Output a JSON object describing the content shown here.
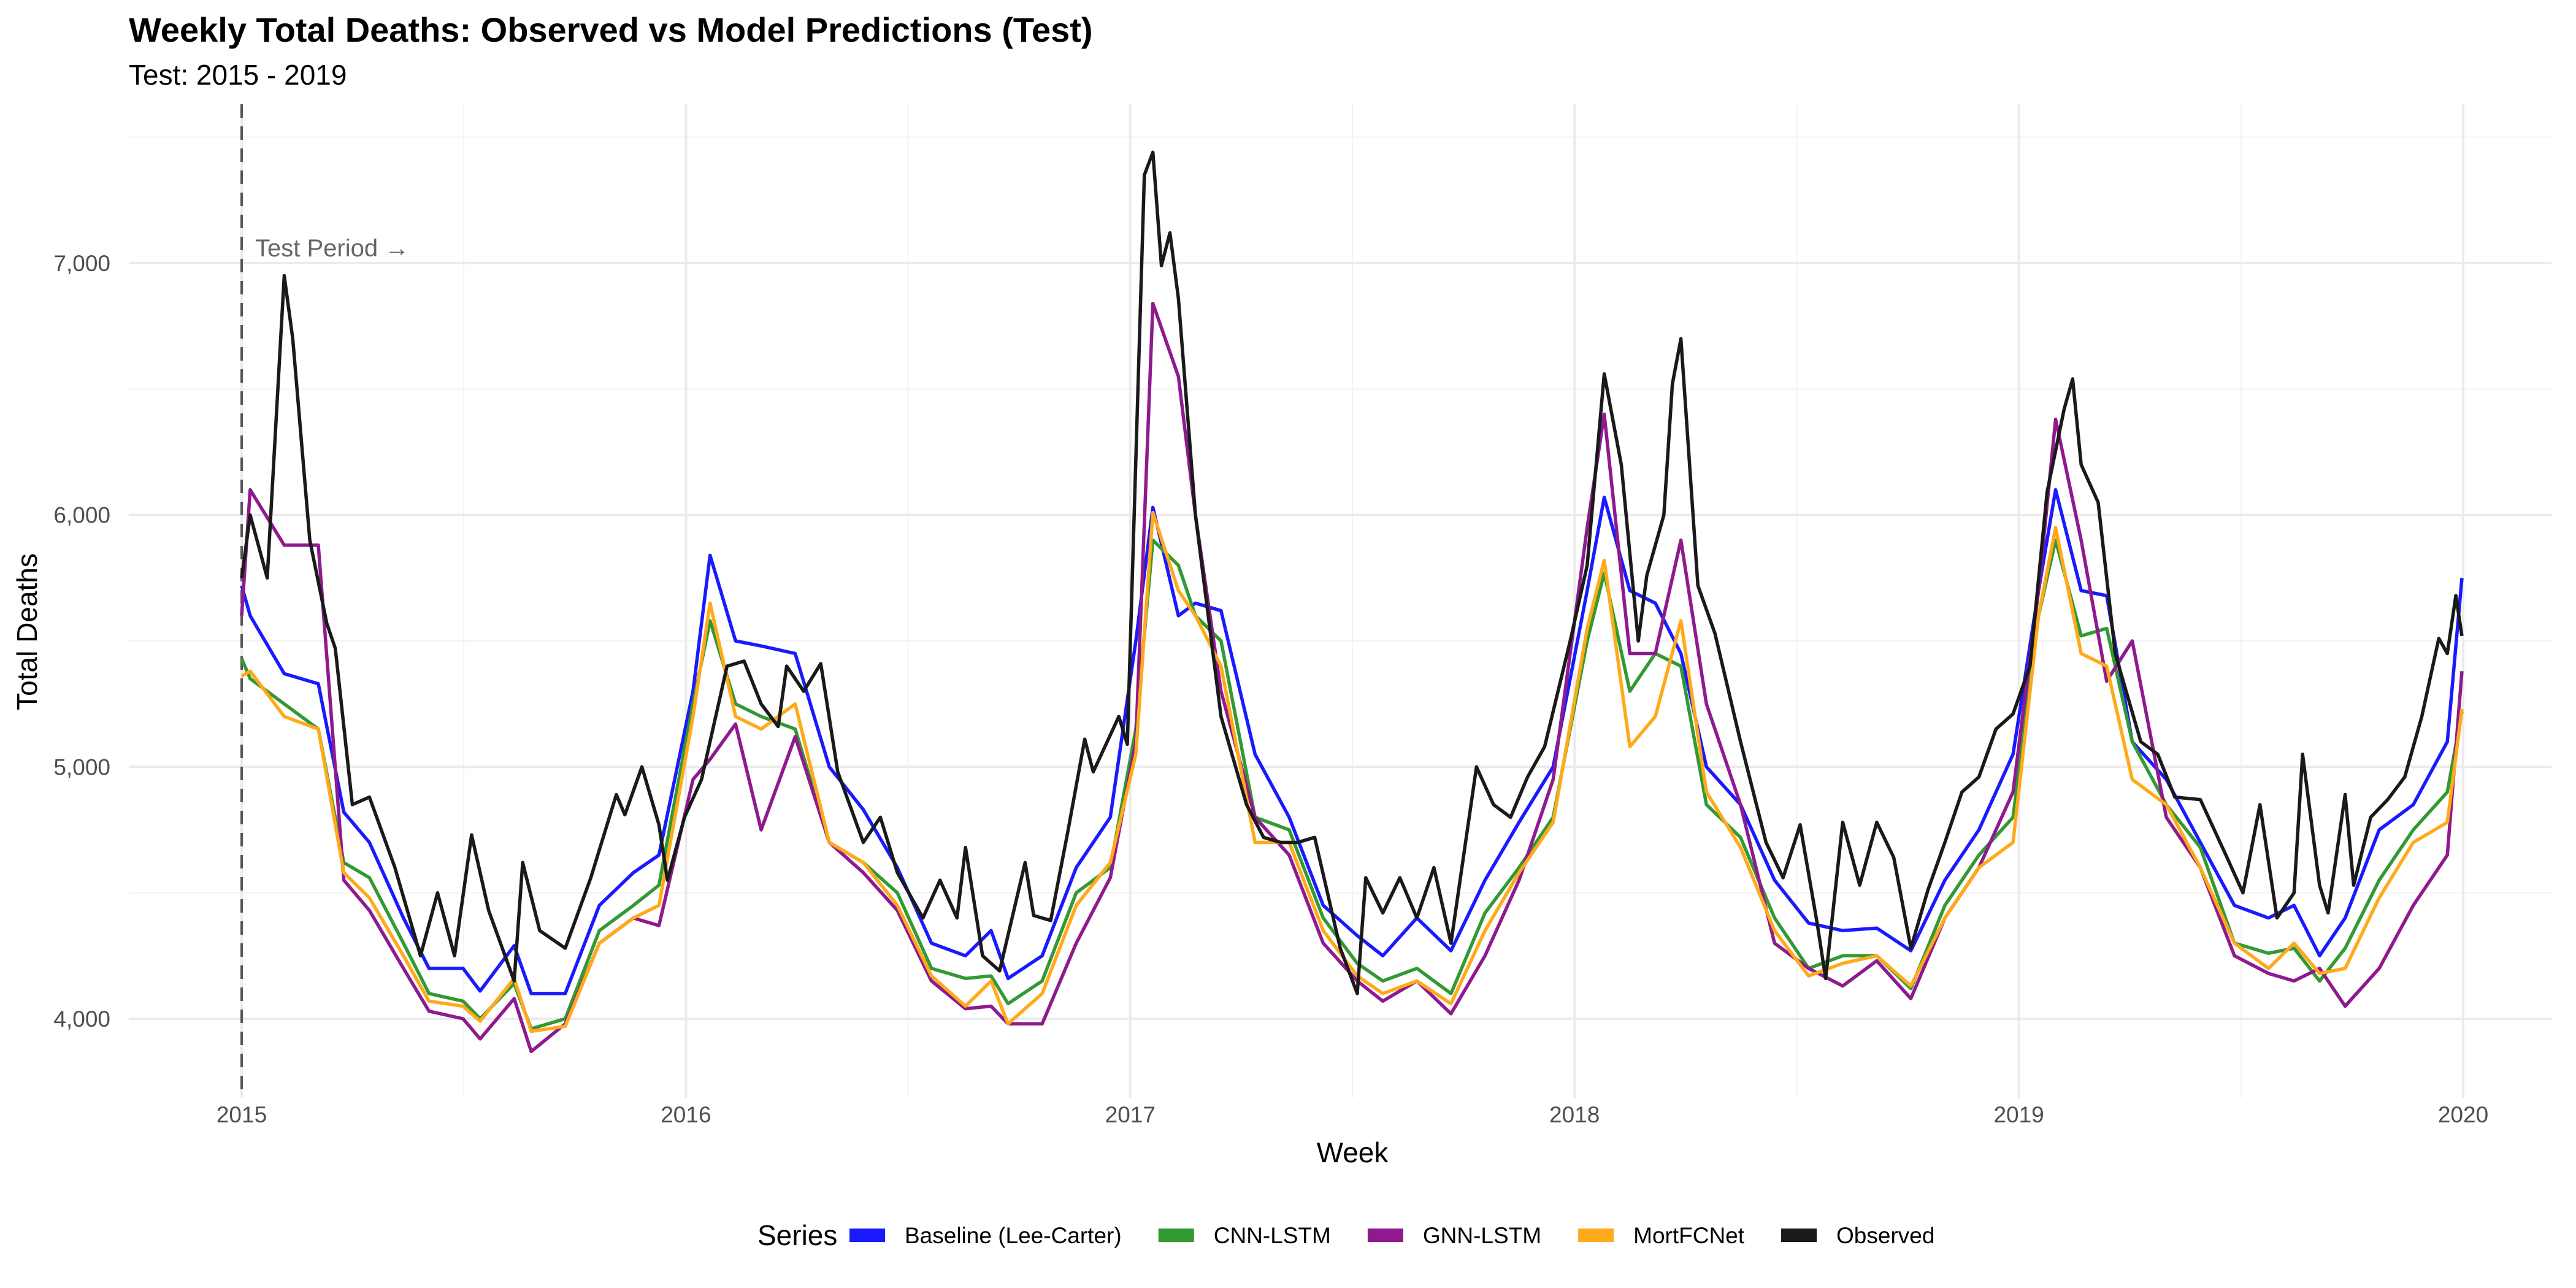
{
  "chart_data": {
    "type": "line",
    "title": "Weekly Total Deaths: Observed vs Model Predictions (Test)",
    "subtitle": "Test: 2015 - 2019",
    "xlabel": "Week",
    "ylabel": "Total Deaths",
    "xlim": [
      "2014-09-15",
      "2020-05-15"
    ],
    "ylim": [
      3700,
      7600
    ],
    "x_ticks": [
      "2015",
      "2016",
      "2017",
      "2018",
      "2019",
      "2020"
    ],
    "y_ticks": [
      4000,
      5000,
      6000,
      7000
    ],
    "y_tick_labels": [
      "4,000",
      "5,000",
      "6,000",
      "7,000"
    ],
    "grid": true,
    "legend": {
      "title": "Series",
      "position": "bottom"
    },
    "annotation": {
      "text": "Test Period →",
      "vline_date": "2015-01-01",
      "style": "dashed"
    },
    "series": [
      {
        "name": "Baseline (Lee-Carter)",
        "color": "#1a1aff",
        "x": [
          "2015-01-01",
          "2015-01-08",
          "2015-02-05",
          "2015-03-05",
          "2015-03-26",
          "2015-04-16",
          "2015-05-14",
          "2015-06-04",
          "2015-07-02",
          "2015-07-16",
          "2015-08-13",
          "2015-08-27",
          "2015-09-24",
          "2015-10-22",
          "2015-11-19",
          "2015-12-10",
          "2016-01-07",
          "2016-01-21",
          "2016-02-11",
          "2016-03-03",
          "2016-03-31",
          "2016-04-28",
          "2016-05-26",
          "2016-06-23",
          "2016-07-21",
          "2016-08-18",
          "2016-09-08",
          "2016-09-22",
          "2016-10-20",
          "2016-11-17",
          "2016-12-15",
          "2017-01-05",
          "2017-01-19",
          "2017-02-09",
          "2017-02-23",
          "2017-03-16",
          "2017-04-13",
          "2017-05-11",
          "2017-06-08",
          "2017-07-06",
          "2017-07-27",
          "2017-08-24",
          "2017-09-21",
          "2017-10-19",
          "2017-11-16",
          "2017-12-14",
          "2018-01-11",
          "2018-01-25",
          "2018-02-15",
          "2018-03-08",
          "2018-03-29",
          "2018-04-19",
          "2018-05-17",
          "2018-06-14",
          "2018-07-12",
          "2018-08-09",
          "2018-09-06",
          "2018-10-04",
          "2018-11-01",
          "2018-11-29",
          "2018-12-27",
          "2019-01-17",
          "2019-01-31",
          "2019-02-21",
          "2019-03-14",
          "2019-04-04",
          "2019-05-02",
          "2019-05-30",
          "2019-06-27",
          "2019-07-25",
          "2019-08-15",
          "2019-09-05",
          "2019-09-26",
          "2019-10-24",
          "2019-11-21",
          "2019-12-19",
          "2019-12-31"
        ],
        "y": [
          5720,
          5600,
          5370,
          5330,
          4820,
          4700,
          4400,
          4200,
          4200,
          4110,
          4290,
          4100,
          4100,
          4450,
          4580,
          4650,
          5300,
          5840,
          5500,
          5480,
          5450,
          5000,
          4830,
          4600,
          4300,
          4250,
          4350,
          4160,
          4250,
          4600,
          4800,
          5500,
          6030,
          5600,
          5650,
          5620,
          5050,
          4800,
          4450,
          4330,
          4250,
          4400,
          4270,
          4550,
          4780,
          5000,
          5700,
          6070,
          5700,
          5650,
          5450,
          5000,
          4850,
          4550,
          4380,
          4350,
          4360,
          4270,
          4550,
          4750,
          5050,
          5700,
          6100,
          5700,
          5680,
          5100,
          4950,
          4700,
          4450,
          4400,
          4450,
          4250,
          4400,
          4750,
          4850,
          5100,
          5750
        ]
      },
      {
        "name": "CNN-LSTM",
        "color": "#339933",
        "x": [
          "2015-01-01",
          "2015-01-08",
          "2015-02-05",
          "2015-03-05",
          "2015-03-26",
          "2015-04-16",
          "2015-05-14",
          "2015-06-04",
          "2015-07-02",
          "2015-07-16",
          "2015-08-13",
          "2015-08-27",
          "2015-09-24",
          "2015-10-22",
          "2015-11-19",
          "2015-12-10",
          "2016-01-07",
          "2016-01-21",
          "2016-02-11",
          "2016-03-03",
          "2016-03-31",
          "2016-04-28",
          "2016-05-26",
          "2016-06-23",
          "2016-07-21",
          "2016-08-18",
          "2016-09-08",
          "2016-09-22",
          "2016-10-20",
          "2016-11-17",
          "2016-12-15",
          "2017-01-05",
          "2017-01-19",
          "2017-02-09",
          "2017-02-23",
          "2017-03-16",
          "2017-04-13",
          "2017-05-11",
          "2017-06-08",
          "2017-07-06",
          "2017-07-27",
          "2017-08-24",
          "2017-09-21",
          "2017-10-19",
          "2017-11-16",
          "2017-12-14",
          "2018-01-11",
          "2018-01-25",
          "2018-02-15",
          "2018-03-08",
          "2018-03-29",
          "2018-04-19",
          "2018-05-17",
          "2018-06-14",
          "2018-07-12",
          "2018-08-09",
          "2018-09-06",
          "2018-10-04",
          "2018-11-01",
          "2018-11-29",
          "2018-12-27",
          "2019-01-17",
          "2019-01-31",
          "2019-02-21",
          "2019-03-14",
          "2019-04-04",
          "2019-05-02",
          "2019-05-30",
          "2019-06-27",
          "2019-07-25",
          "2019-08-15",
          "2019-09-05",
          "2019-09-26",
          "2019-10-24",
          "2019-11-21",
          "2019-12-19",
          "2019-12-31"
        ],
        "y": [
          5430,
          5350,
          5250,
          5150,
          4620,
          4560,
          4300,
          4100,
          4070,
          4000,
          4140,
          3960,
          4000,
          4350,
          4450,
          4530,
          5250,
          5580,
          5250,
          5200,
          5150,
          4700,
          4620,
          4500,
          4200,
          4160,
          4170,
          4060,
          4150,
          4500,
          4600,
          5150,
          5900,
          5800,
          5600,
          5500,
          4800,
          4750,
          4400,
          4220,
          4150,
          4200,
          4100,
          4420,
          4600,
          4800,
          5500,
          5770,
          5300,
          5450,
          5400,
          4850,
          4720,
          4400,
          4200,
          4250,
          4250,
          4120,
          4450,
          4650,
          4800,
          5600,
          5900,
          5520,
          5550,
          5100,
          4850,
          4680,
          4300,
          4260,
          4280,
          4150,
          4280,
          4550,
          4750,
          4900,
          5220
        ]
      },
      {
        "name": "GNN-LSTM",
        "color": "#8e1a8e",
        "x": [
          "2015-01-01",
          "2015-01-08",
          "2015-02-05",
          "2015-03-05",
          "2015-03-26",
          "2015-04-16",
          "2015-05-14",
          "2015-06-04",
          "2015-07-02",
          "2015-07-16",
          "2015-08-13",
          "2015-08-27",
          "2015-09-24",
          "2015-10-22",
          "2015-11-19",
          "2015-12-10",
          "2016-01-07",
          "2016-01-21",
          "2016-02-11",
          "2016-03-03",
          "2016-03-31",
          "2016-04-28",
          "2016-05-26",
          "2016-06-23",
          "2016-07-21",
          "2016-08-18",
          "2016-09-08",
          "2016-09-22",
          "2016-10-20",
          "2016-11-17",
          "2016-12-15",
          "2017-01-05",
          "2017-01-19",
          "2017-02-09",
          "2017-02-23",
          "2017-03-16",
          "2017-04-13",
          "2017-05-11",
          "2017-06-08",
          "2017-07-06",
          "2017-07-27",
          "2017-08-24",
          "2017-09-21",
          "2017-10-19",
          "2017-11-16",
          "2017-12-14",
          "2018-01-11",
          "2018-01-25",
          "2018-02-15",
          "2018-03-08",
          "2018-03-29",
          "2018-04-19",
          "2018-05-17",
          "2018-06-14",
          "2018-07-12",
          "2018-08-09",
          "2018-09-06",
          "2018-10-04",
          "2018-11-01",
          "2018-11-29",
          "2018-12-27",
          "2019-01-17",
          "2019-01-31",
          "2019-02-21",
          "2019-03-14",
          "2019-04-04",
          "2019-05-02",
          "2019-05-30",
          "2019-06-27",
          "2019-07-25",
          "2019-08-15",
          "2019-09-05",
          "2019-09-26",
          "2019-10-24",
          "2019-11-21",
          "2019-12-19",
          "2019-12-31"
        ],
        "y": [
          5600,
          6100,
          5880,
          5880,
          4550,
          4430,
          4200,
          4030,
          4000,
          3920,
          4080,
          3870,
          3980,
          4300,
          4400,
          4370,
          4950,
          5030,
          5170,
          4750,
          5120,
          4700,
          4580,
          4430,
          4150,
          4040,
          4050,
          3980,
          3980,
          4300,
          4560,
          5100,
          6840,
          6550,
          6000,
          5300,
          4800,
          4650,
          4300,
          4150,
          4070,
          4150,
          4020,
          4250,
          4550,
          4950,
          5950,
          6400,
          5450,
          5450,
          5900,
          5250,
          4850,
          4300,
          4200,
          4130,
          4230,
          4080,
          4400,
          4600,
          4900,
          5700,
          6380,
          5900,
          5340,
          5500,
          4800,
          4600,
          4250,
          4180,
          4150,
          4200,
          4050,
          4200,
          4450,
          4650,
          5380
        ]
      },
      {
        "name": "MortFCNet",
        "color": "#ffaa1a",
        "x": [
          "2015-01-01",
          "2015-01-08",
          "2015-02-05",
          "2015-03-05",
          "2015-03-26",
          "2015-04-16",
          "2015-05-14",
          "2015-06-04",
          "2015-07-02",
          "2015-07-16",
          "2015-08-13",
          "2015-08-27",
          "2015-09-24",
          "2015-10-22",
          "2015-11-19",
          "2015-12-10",
          "2016-01-07",
          "2016-01-21",
          "2016-02-11",
          "2016-03-03",
          "2016-03-31",
          "2016-04-28",
          "2016-05-26",
          "2016-06-23",
          "2016-07-21",
          "2016-08-18",
          "2016-09-08",
          "2016-09-22",
          "2016-10-20",
          "2016-11-17",
          "2016-12-15",
          "2017-01-05",
          "2017-01-19",
          "2017-02-09",
          "2017-02-23",
          "2017-03-16",
          "2017-04-13",
          "2017-05-11",
          "2017-06-08",
          "2017-07-06",
          "2017-07-27",
          "2017-08-24",
          "2017-09-21",
          "2017-10-19",
          "2017-11-16",
          "2017-12-14",
          "2018-01-11",
          "2018-01-25",
          "2018-02-15",
          "2018-03-08",
          "2018-03-29",
          "2018-04-19",
          "2018-05-17",
          "2018-06-14",
          "2018-07-12",
          "2018-08-09",
          "2018-09-06",
          "2018-10-04",
          "2018-11-01",
          "2018-11-29",
          "2018-12-27",
          "2019-01-17",
          "2019-01-31",
          "2019-02-21",
          "2019-03-14",
          "2019-04-04",
          "2019-05-02",
          "2019-05-30",
          "2019-06-27",
          "2019-07-25",
          "2019-08-15",
          "2019-09-05",
          "2019-09-26",
          "2019-10-24",
          "2019-11-21",
          "2019-12-19",
          "2019-12-31"
        ],
        "y": [
          5360,
          5380,
          5200,
          5150,
          4580,
          4480,
          4250,
          4070,
          4050,
          3990,
          4160,
          3950,
          3970,
          4300,
          4400,
          4450,
          5200,
          5650,
          5200,
          5150,
          5250,
          4700,
          4620,
          4450,
          4170,
          4050,
          4150,
          3980,
          4100,
          4450,
          4620,
          5050,
          6010,
          5700,
          5600,
          5400,
          4700,
          4700,
          4350,
          4170,
          4100,
          4150,
          4060,
          4350,
          4580,
          4780,
          5550,
          5820,
          5080,
          5200,
          5580,
          4900,
          4680,
          4350,
          4170,
          4220,
          4250,
          4130,
          4400,
          4600,
          4700,
          5600,
          5950,
          5450,
          5400,
          4950,
          4850,
          4600,
          4300,
          4200,
          4300,
          4180,
          4200,
          4480,
          4700,
          4780,
          5230
        ]
      },
      {
        "name": "Observed",
        "color": "#1a1a1a",
        "x": [
          "2015-01-01",
          "2015-01-08",
          "2015-01-22",
          "2015-02-05",
          "2015-02-12",
          "2015-02-26",
          "2015-03-12",
          "2015-03-19",
          "2015-04-02",
          "2015-04-16",
          "2015-05-07",
          "2015-05-28",
          "2015-06-11",
          "2015-06-25",
          "2015-07-09",
          "2015-07-23",
          "2015-08-13",
          "2015-08-20",
          "2015-09-03",
          "2015-09-24",
          "2015-10-15",
          "2015-11-05",
          "2015-11-12",
          "2015-11-26",
          "2015-12-10",
          "2015-12-17",
          "2015-12-31",
          "2016-01-14",
          "2016-02-04",
          "2016-02-18",
          "2016-03-03",
          "2016-03-17",
          "2016-03-24",
          "2016-04-07",
          "2016-04-21",
          "2016-05-05",
          "2016-05-26",
          "2016-06-09",
          "2016-06-23",
          "2016-07-14",
          "2016-07-28",
          "2016-08-11",
          "2016-08-18",
          "2016-09-01",
          "2016-09-15",
          "2016-10-06",
          "2016-10-13",
          "2016-10-27",
          "2016-11-10",
          "2016-11-24",
          "2016-12-01",
          "2016-12-22",
          "2016-12-29",
          "2017-01-12",
          "2017-01-19",
          "2017-01-26",
          "2017-02-02",
          "2017-02-09",
          "2017-02-23",
          "2017-03-16",
          "2017-04-06",
          "2017-04-20",
          "2017-05-04",
          "2017-05-18",
          "2017-06-01",
          "2017-06-22",
          "2017-07-06",
          "2017-07-13",
          "2017-07-27",
          "2017-08-10",
          "2017-08-24",
          "2017-09-07",
          "2017-09-21",
          "2017-10-12",
          "2017-10-26",
          "2017-11-09",
          "2017-11-23",
          "2017-12-07",
          "2017-12-28",
          "2018-01-11",
          "2018-01-25",
          "2018-02-08",
          "2018-02-22",
          "2018-03-01",
          "2018-03-15",
          "2018-03-22",
          "2018-03-29",
          "2018-04-12",
          "2018-04-26",
          "2018-05-17",
          "2018-06-07",
          "2018-06-21",
          "2018-07-05",
          "2018-07-19",
          "2018-07-26",
          "2018-08-09",
          "2018-08-23",
          "2018-09-06",
          "2018-09-20",
          "2018-10-04",
          "2018-10-18",
          "2018-11-01",
          "2018-11-15",
          "2018-11-29",
          "2018-12-13",
          "2018-12-27",
          "2019-01-10",
          "2019-01-24",
          "2019-02-07",
          "2019-02-14",
          "2019-02-21",
          "2019-03-07",
          "2019-03-21",
          "2019-04-11",
          "2019-04-25",
          "2019-05-09",
          "2019-05-30",
          "2019-06-20",
          "2019-07-04",
          "2019-07-18",
          "2019-08-01",
          "2019-08-15",
          "2019-08-22",
          "2019-09-05",
          "2019-09-12",
          "2019-09-26",
          "2019-10-03",
          "2019-10-17",
          "2019-10-31",
          "2019-11-14",
          "2019-11-28",
          "2019-12-12",
          "2019-12-19",
          "2019-12-26",
          "2019-12-31"
        ],
        "y": [
          5750,
          6000,
          5750,
          6950,
          6700,
          5900,
          5570,
          5470,
          4850,
          4880,
          4600,
          4250,
          4500,
          4250,
          4730,
          4430,
          4150,
          4620,
          4350,
          4280,
          4560,
          4890,
          4810,
          5000,
          4770,
          4550,
          4800,
          4950,
          5400,
          5420,
          5250,
          5160,
          5400,
          5300,
          5410,
          4980,
          4700,
          4800,
          4580,
          4400,
          4550,
          4400,
          4680,
          4250,
          4190,
          4620,
          4410,
          4390,
          4740,
          5110,
          4980,
          5200,
          5090,
          7350,
          7440,
          6990,
          7120,
          6860,
          6000,
          5200,
          4850,
          4720,
          4700,
          4700,
          4720,
          4280,
          4100,
          4560,
          4420,
          4560,
          4400,
          4600,
          4300,
          5000,
          4850,
          4800,
          4960,
          5080,
          5500,
          5800,
          6560,
          6200,
          5500,
          5760,
          6000,
          6520,
          6700,
          5720,
          5530,
          5100,
          4700,
          4560,
          4770,
          4380,
          4160,
          4780,
          4530,
          4780,
          4640,
          4280,
          4510,
          4700,
          4900,
          4960,
          5150,
          5210,
          5400,
          6090,
          6420,
          6540,
          6200,
          6050,
          5450,
          5100,
          5050,
          4880,
          4870,
          4650,
          4500,
          4850,
          4400,
          4500,
          5050,
          4530,
          4420,
          4890,
          4530,
          4800,
          4870,
          4960,
          5200,
          5510,
          5450,
          5680,
          5520
        ]
      }
    ]
  }
}
